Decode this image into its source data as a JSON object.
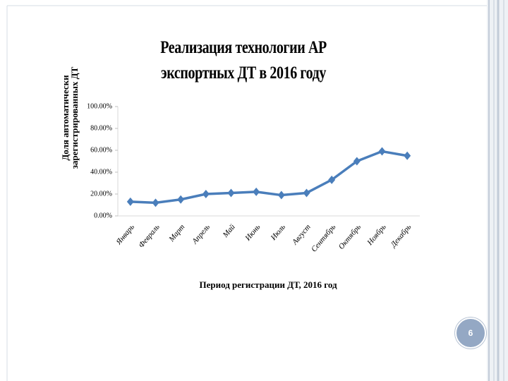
{
  "chart_data": {
    "type": "line",
    "title": "Реализация технологии АР экспортных ДТ в 2016 году",
    "x_label": "Период регистрации ДТ, 2016 год",
    "y_label": "Доля автоматически зарегистрированных ДТ",
    "categories": [
      "Январь",
      "Февраль",
      "Март",
      "Апрель",
      "Май",
      "Июнь",
      "Июль",
      "Август",
      "Сентябрь",
      "Октябрь",
      "Ноябрь",
      "Декабрь"
    ],
    "values": [
      13,
      12,
      15,
      20,
      21,
      22,
      19,
      21,
      33,
      50,
      59,
      55
    ],
    "color": "#4a7ebb",
    "ylim": [
      0,
      100
    ],
    "yticks": [
      {
        "value": 0,
        "label": "0.00%"
      },
      {
        "value": 20,
        "label": "20.00%"
      },
      {
        "value": 40,
        "label": "40.00%"
      },
      {
        "value": 60,
        "label": "60.00%"
      },
      {
        "value": 80,
        "label": "80.00%"
      },
      {
        "value": 100,
        "label": "100.00%"
      }
    ],
    "grid": false
  },
  "slide_number": "6"
}
